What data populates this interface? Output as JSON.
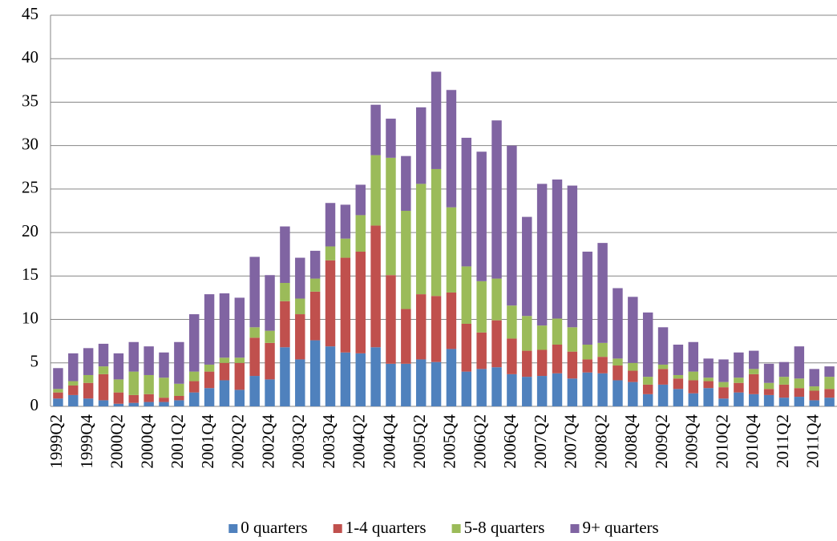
{
  "chart_data": {
    "type": "stacked-bar",
    "categories": [
      "1999Q2",
      null,
      "1999Q4",
      null,
      "2000Q2",
      null,
      "2000Q4",
      null,
      "2001Q2",
      null,
      "2001Q4",
      null,
      "2002Q2",
      null,
      "2002Q4",
      null,
      "2003Q2",
      null,
      "2003Q4",
      null,
      "2004Q2",
      null,
      "2004Q4",
      null,
      "2005Q2",
      null,
      "2005Q4",
      null,
      "2006Q2",
      null,
      "2006Q4",
      null,
      "2007Q2",
      null,
      "2007Q4",
      null,
      "2008Q2",
      null,
      "2008Q4",
      null,
      "2009Q2",
      null,
      "2009Q4",
      null,
      "2010Q2",
      null,
      "2010Q4",
      null,
      "2011Q2",
      null,
      "2011Q4",
      null
    ],
    "series": [
      {
        "name": "0 quarters",
        "color": "#4f81bd",
        "values": [
          0.9,
          1.3,
          0.9,
          0.7,
          0.3,
          0.4,
          0.5,
          0.5,
          0.7,
          1.6,
          2.1,
          3.0,
          1.9,
          3.5,
          3.1,
          6.8,
          5.4,
          7.6,
          6.9,
          6.2,
          6.1,
          6.8,
          4.9,
          4.9,
          5.4,
          5.1,
          6.6,
          4.0,
          4.3,
          4.5,
          3.7,
          3.4,
          3.5,
          3.8,
          3.2,
          3.9,
          3.8,
          3.0,
          2.8,
          1.4,
          2.5,
          2.0,
          1.5,
          2.1,
          0.9,
          1.6,
          1.4,
          1.3,
          1.0,
          1.1,
          0.7,
          1.0
        ]
      },
      {
        "name": "1-4 quarters",
        "color": "#c0504d",
        "values": [
          0.7,
          1.1,
          1.8,
          3.0,
          1.3,
          0.9,
          0.9,
          0.5,
          0.5,
          1.3,
          1.9,
          2.0,
          3.1,
          4.4,
          4.2,
          5.3,
          5.2,
          5.6,
          9.9,
          10.9,
          11.7,
          14.0,
          10.2,
          6.3,
          7.5,
          7.6,
          6.5,
          5.5,
          4.2,
          5.4,
          4.1,
          3.0,
          3.0,
          3.3,
          3.1,
          1.5,
          1.9,
          1.7,
          1.3,
          1.1,
          1.8,
          1.2,
          1.5,
          0.8,
          1.3,
          1.1,
          2.3,
          0.7,
          1.5,
          1.0,
          1.1,
          1.0
        ]
      },
      {
        "name": "5-8 quarters",
        "color": "#9bbb59",
        "values": [
          0.4,
          0.5,
          0.9,
          0.9,
          1.5,
          2.7,
          2.2,
          2.3,
          1.4,
          1.1,
          0.8,
          0.6,
          0.6,
          1.2,
          1.4,
          2.1,
          1.8,
          1.5,
          1.6,
          2.2,
          4.2,
          8.1,
          13.5,
          11.3,
          12.7,
          14.6,
          9.8,
          6.6,
          5.9,
          4.8,
          3.8,
          4.0,
          2.8,
          3.0,
          2.8,
          1.7,
          1.6,
          0.8,
          0.9,
          0.9,
          0.5,
          0.4,
          1.0,
          0.4,
          0.6,
          0.6,
          0.6,
          0.7,
          0.9,
          1.1,
          0.5,
          1.4
        ]
      },
      {
        "name": "9+ quarters",
        "color": "#8064a2",
        "values": [
          2.4,
          3.2,
          3.1,
          2.6,
          3.0,
          3.4,
          3.3,
          2.9,
          4.8,
          6.6,
          8.1,
          7.4,
          6.9,
          8.1,
          6.4,
          6.5,
          4.7,
          3.2,
          5.0,
          3.9,
          3.5,
          5.8,
          4.5,
          6.3,
          8.8,
          11.2,
          13.5,
          14.8,
          14.9,
          18.2,
          18.4,
          11.4,
          16.3,
          16.0,
          16.3,
          10.7,
          11.5,
          8.1,
          7.6,
          7.4,
          4.3,
          3.5,
          3.4,
          2.2,
          2.6,
          2.9,
          2.1,
          2.2,
          1.7,
          3.7,
          2.0,
          1.2
        ]
      }
    ],
    "ylim": [
      0,
      45
    ],
    "yticks": [
      0,
      5,
      10,
      15,
      20,
      25,
      30,
      35,
      40,
      45
    ],
    "grid": true,
    "legend": "bottom"
  }
}
